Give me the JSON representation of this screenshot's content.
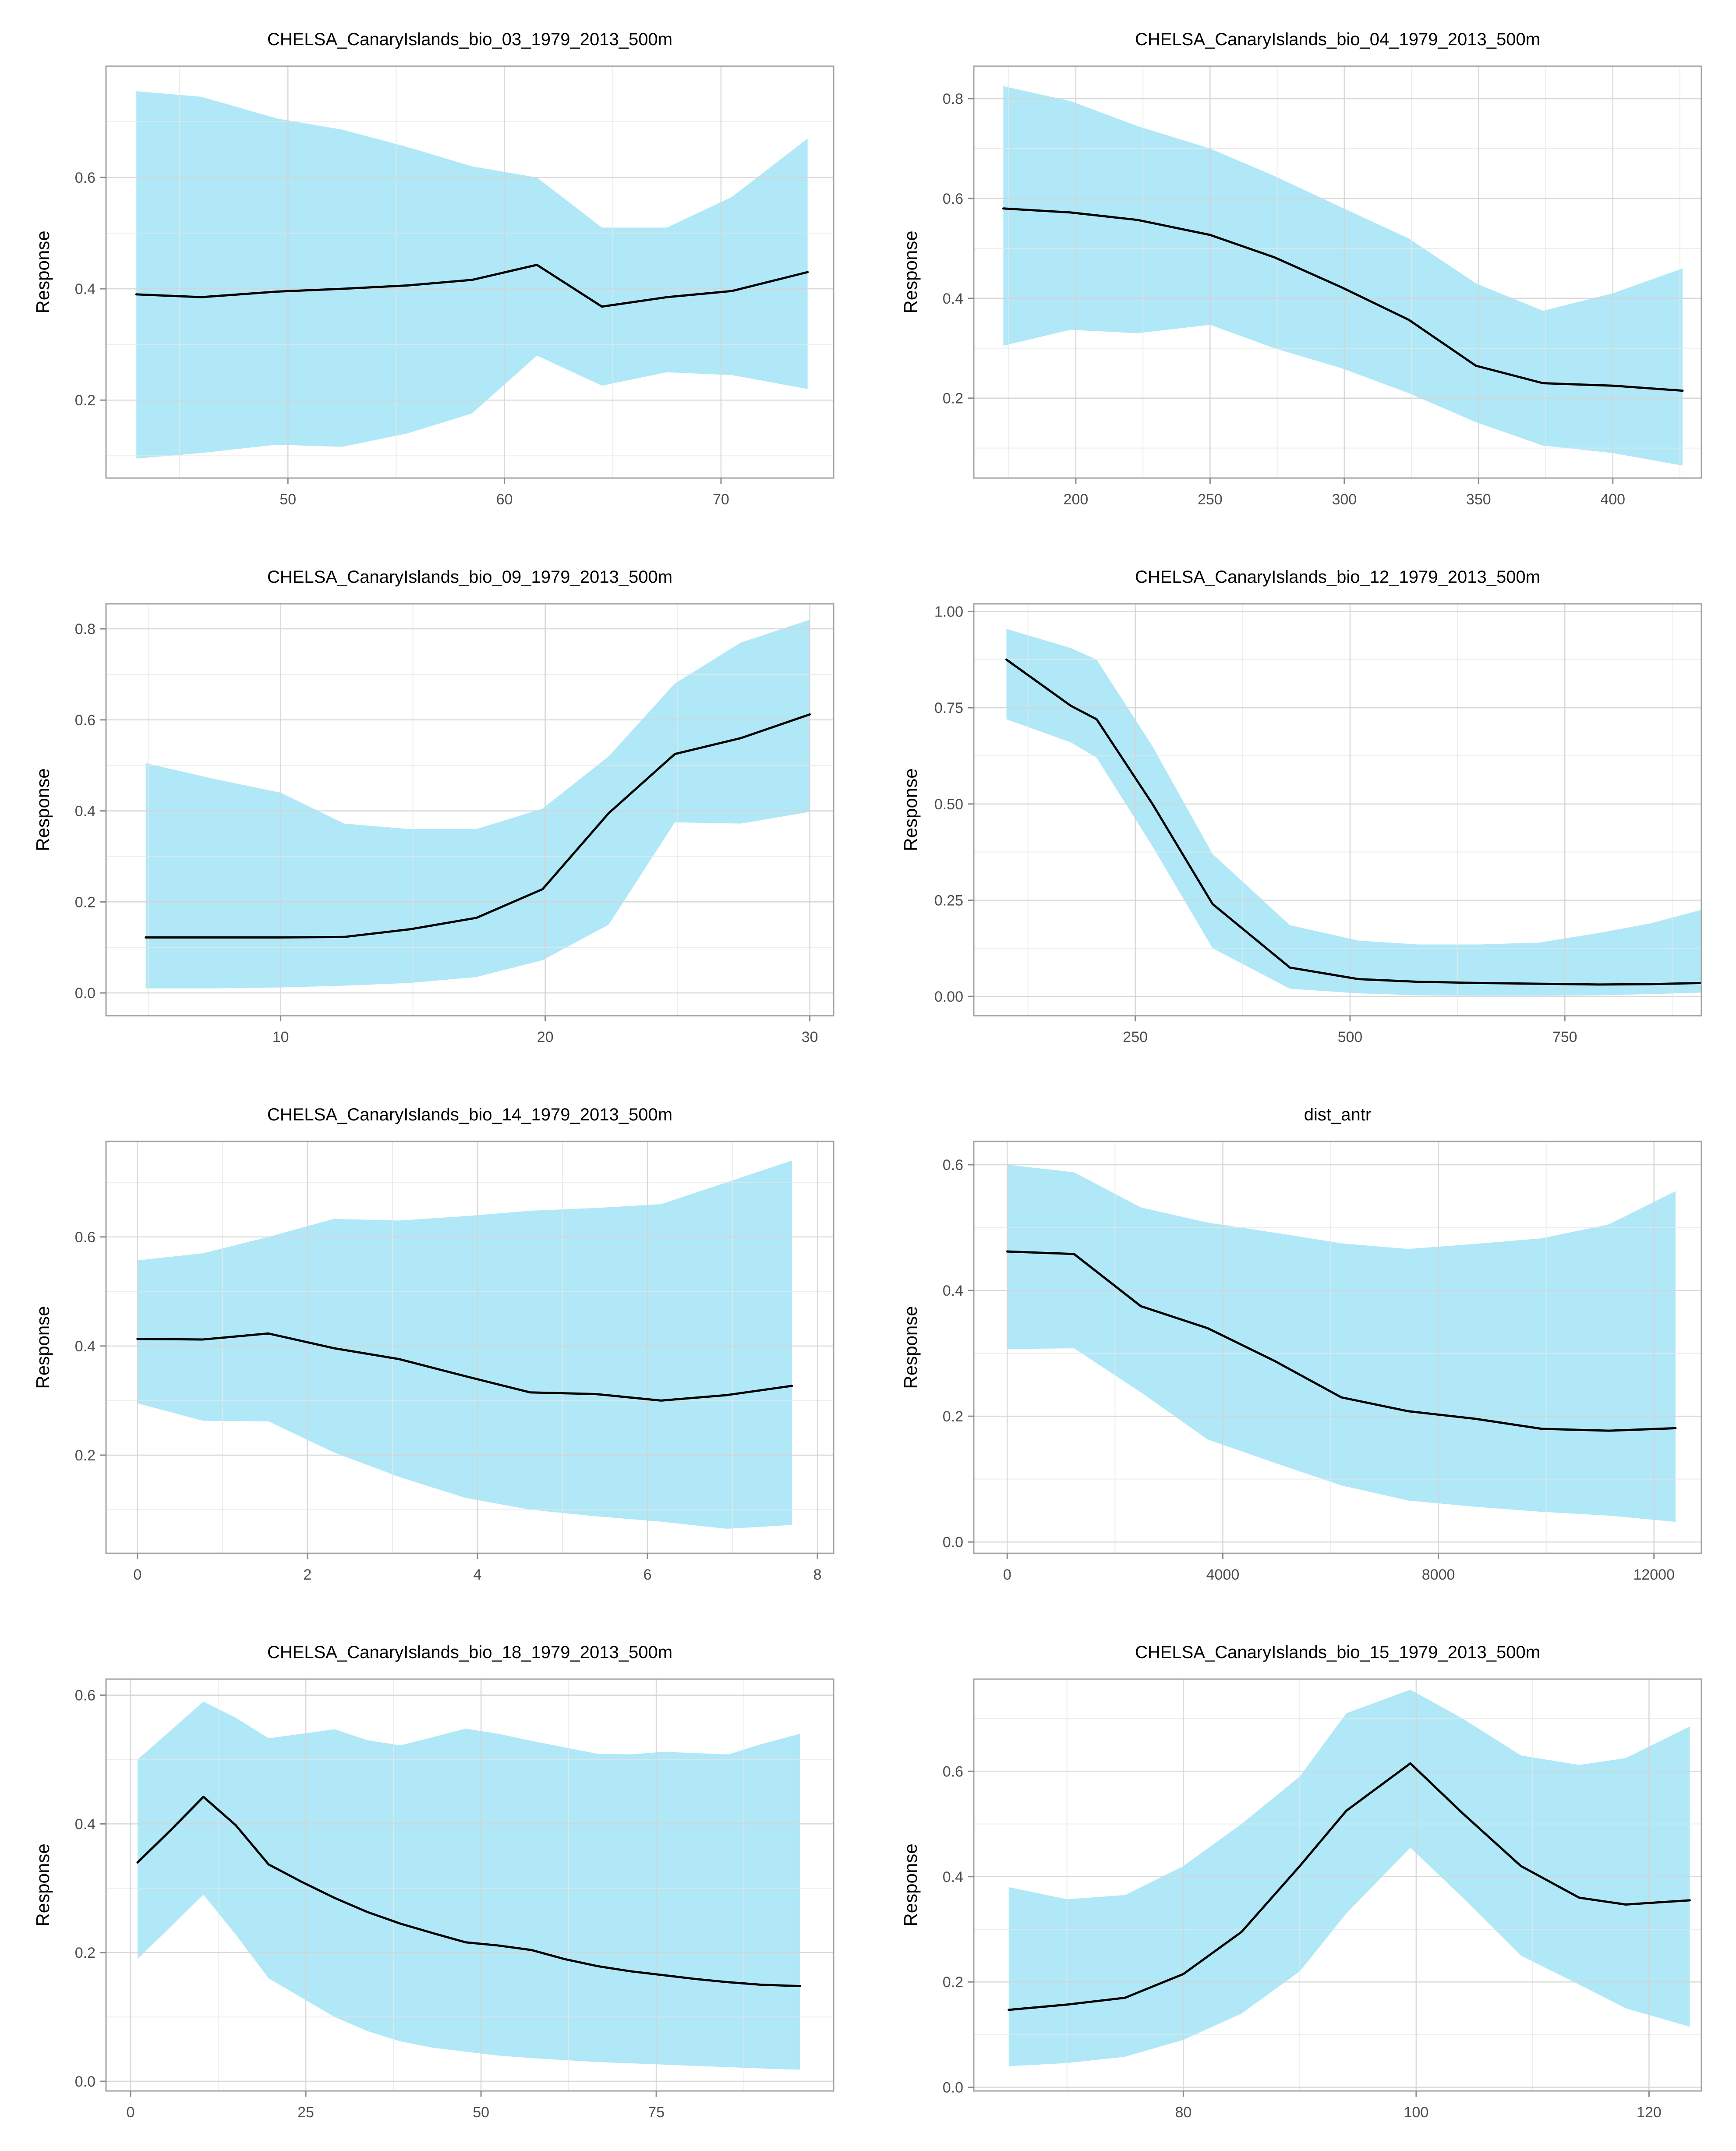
{
  "styles": {
    "band_color": "#b0e8f8",
    "line_color": "#000000",
    "grid_major": "#d4d4d4",
    "grid_minor": "#e7e7e7",
    "panel_border": "#a3a3a3",
    "tick_color": "#8c8c8c",
    "axis_text": "#4d4d4d",
    "title_color": "#000000"
  },
  "chart_data": [
    {
      "type": "area",
      "title": "CHELSA_CanaryIslands_bio_03_1979_2013_500m",
      "ylabel": "Response",
      "xlim": [
        41.6,
        75.2
      ],
      "ylim": [
        0.06,
        0.8
      ],
      "xticks": [
        50,
        60,
        70
      ],
      "xtick_labels": [
        "50",
        "60",
        "70"
      ],
      "xminor": [
        45,
        55,
        65
      ],
      "yticks": [
        0.2,
        0.4,
        0.6
      ],
      "ytick_labels": [
        "0.2",
        "0.4",
        "0.6"
      ],
      "yminor": [
        0.1,
        0.3,
        0.5,
        0.7
      ],
      "x": [
        43,
        46,
        49.5,
        52.5,
        55.5,
        58.5,
        61.5,
        64.5,
        67.5,
        70.5,
        74
      ],
      "mean": [
        0.39,
        0.385,
        0.395,
        0.4,
        0.406,
        0.416,
        0.443,
        0.368,
        0.385,
        0.396,
        0.43
      ],
      "upper": [
        0.755,
        0.745,
        0.706,
        0.686,
        0.655,
        0.62,
        0.6,
        0.51,
        0.51,
        0.565,
        0.67
      ],
      "lower": [
        0.095,
        0.105,
        0.12,
        0.116,
        0.14,
        0.176,
        0.28,
        0.226,
        0.25,
        0.245,
        0.22
      ]
    },
    {
      "type": "area",
      "title": "CHELSA_CanaryIslands_bio_04_1979_2013_500m",
      "ylabel": "Response",
      "xlim": [
        162,
        433
      ],
      "ylim": [
        0.04,
        0.865
      ],
      "xticks": [
        200,
        250,
        300,
        350,
        400
      ],
      "xtick_labels": [
        "200",
        "250",
        "300",
        "350",
        "400"
      ],
      "xminor": [
        175,
        225,
        275,
        325,
        375,
        425
      ],
      "yticks": [
        0.2,
        0.4,
        0.6,
        0.8
      ],
      "ytick_labels": [
        "0.2",
        "0.4",
        "0.6",
        "0.8"
      ],
      "yminor": [
        0.1,
        0.3,
        0.5,
        0.7
      ],
      "x": [
        173,
        198,
        223,
        250,
        274,
        299,
        324,
        349,
        374,
        400,
        426
      ],
      "mean": [
        0.58,
        0.572,
        0.557,
        0.527,
        0.482,
        0.422,
        0.357,
        0.265,
        0.23,
        0.225,
        0.215
      ],
      "upper": [
        0.825,
        0.795,
        0.745,
        0.7,
        0.645,
        0.582,
        0.52,
        0.43,
        0.375,
        0.41,
        0.46
      ],
      "lower": [
        0.305,
        0.337,
        0.33,
        0.347,
        0.3,
        0.26,
        0.21,
        0.152,
        0.105,
        0.09,
        0.065
      ]
    },
    {
      "type": "area",
      "title": "CHELSA_CanaryIslands_bio_09_1979_2013_500m",
      "ylabel": "Response",
      "xlim": [
        3.4,
        30.9
      ],
      "ylim": [
        -0.05,
        0.855
      ],
      "xticks": [
        10,
        20,
        30
      ],
      "xtick_labels": [
        "10",
        "20",
        "30"
      ],
      "xminor": [
        5,
        15,
        25
      ],
      "yticks": [
        0.0,
        0.2,
        0.4,
        0.6,
        0.8
      ],
      "ytick_labels": [
        "0.0",
        "0.2",
        "0.4",
        "0.6",
        "0.8"
      ],
      "yminor": [
        0.1,
        0.3,
        0.5,
        0.7
      ],
      "x": [
        4.9,
        7.5,
        10,
        12.4,
        14.9,
        17.4,
        19.9,
        22.4,
        24.9,
        27.4,
        30
      ],
      "mean": [
        0.122,
        0.122,
        0.122,
        0.123,
        0.14,
        0.165,
        0.228,
        0.395,
        0.525,
        0.56,
        0.612
      ],
      "upper": [
        0.505,
        0.47,
        0.44,
        0.372,
        0.36,
        0.36,
        0.405,
        0.52,
        0.68,
        0.77,
        0.82
      ],
      "lower": [
        0.01,
        0.01,
        0.012,
        0.016,
        0.022,
        0.035,
        0.072,
        0.15,
        0.375,
        0.372,
        0.398
      ]
    },
    {
      "type": "area",
      "title": "CHELSA_CanaryIslands_bio_12_1979_2013_500m",
      "ylabel": "Response",
      "xlim": [
        62,
        909
      ],
      "ylim": [
        -0.05,
        1.02
      ],
      "xticks": [
        250,
        500,
        750
      ],
      "xtick_labels": [
        "250",
        "500",
        "750"
      ],
      "xminor": [
        125,
        375,
        625,
        875
      ],
      "yticks": [
        0.0,
        0.25,
        0.5,
        0.75,
        1.0
      ],
      "ytick_labels": [
        "0.00",
        "0.25",
        "0.50",
        "0.75",
        "1.00"
      ],
      "yminor": [
        0.125,
        0.375,
        0.625,
        0.875
      ],
      "x": [
        100,
        175,
        205,
        270,
        340,
        430,
        510,
        580,
        650,
        720,
        790,
        850,
        909
      ],
      "mean": [
        0.875,
        0.755,
        0.72,
        0.5,
        0.24,
        0.075,
        0.045,
        0.038,
        0.035,
        0.033,
        0.031,
        0.032,
        0.035
      ],
      "upper": [
        0.955,
        0.905,
        0.875,
        0.65,
        0.37,
        0.185,
        0.145,
        0.135,
        0.135,
        0.14,
        0.165,
        0.19,
        0.225
      ],
      "lower": [
        0.72,
        0.66,
        0.62,
        0.39,
        0.125,
        0.02,
        0.008,
        0.003,
        0.002,
        0.002,
        0.003,
        0.006,
        0.01
      ]
    },
    {
      "type": "area",
      "title": "CHELSA_CanaryIslands_bio_14_1979_2013_500m",
      "ylabel": "Response",
      "xlim": [
        -0.37,
        8.19
      ],
      "ylim": [
        0.02,
        0.775
      ],
      "xticks": [
        0,
        2,
        4,
        6,
        8
      ],
      "xtick_labels": [
        "0",
        "2",
        "4",
        "6",
        "8"
      ],
      "xminor": [
        1,
        3,
        5,
        7
      ],
      "yticks": [
        0.2,
        0.4,
        0.6
      ],
      "ytick_labels": [
        "0.2",
        "0.4",
        "0.6"
      ],
      "yminor": [
        0.1,
        0.3,
        0.5,
        0.7
      ],
      "x": [
        0,
        0.77,
        1.54,
        2.31,
        3.08,
        3.85,
        4.62,
        5.39,
        6.16,
        6.93,
        7.7
      ],
      "mean": [
        0.413,
        0.412,
        0.423,
        0.396,
        0.376,
        0.345,
        0.315,
        0.312,
        0.3,
        0.31,
        0.327
      ],
      "upper": [
        0.557,
        0.57,
        0.6,
        0.633,
        0.63,
        0.638,
        0.648,
        0.653,
        0.66,
        0.7,
        0.74
      ],
      "lower": [
        0.295,
        0.263,
        0.262,
        0.205,
        0.16,
        0.122,
        0.1,
        0.088,
        0.078,
        0.065,
        0.072
      ]
    },
    {
      "type": "area",
      "title": "dist_antr",
      "ylabel": "Response",
      "xlim": [
        -620,
        12880
      ],
      "ylim": [
        -0.018,
        0.637
      ],
      "xticks": [
        0,
        4000,
        8000,
        12000
      ],
      "xtick_labels": [
        "0",
        "4000",
        "8000",
        "12000"
      ],
      "xminor": [
        2000,
        6000,
        10000
      ],
      "yticks": [
        0.0,
        0.2,
        0.4,
        0.6
      ],
      "ytick_labels": [
        "0.0",
        "0.2",
        "0.4",
        "0.6"
      ],
      "yminor": [
        0.1,
        0.3,
        0.5
      ],
      "x": [
        0,
        1240,
        2480,
        3720,
        4960,
        6200,
        7440,
        8680,
        9920,
        11160,
        12400
      ],
      "mean": [
        0.462,
        0.458,
        0.375,
        0.34,
        0.288,
        0.23,
        0.208,
        0.196,
        0.18,
        0.177,
        0.181
      ],
      "upper": [
        0.6,
        0.588,
        0.532,
        0.508,
        0.492,
        0.475,
        0.466,
        0.474,
        0.483,
        0.505,
        0.558
      ],
      "lower": [
        0.307,
        0.308,
        0.238,
        0.163,
        0.126,
        0.09,
        0.066,
        0.056,
        0.048,
        0.042,
        0.032
      ]
    },
    {
      "type": "area",
      "title": "CHELSA_CanaryIslands_bio_18_1979_2013_500m",
      "ylabel": "Response",
      "xlim": [
        -3.5,
        100.3
      ],
      "ylim": [
        -0.015,
        0.625
      ],
      "xticks": [
        0,
        25,
        50,
        75
      ],
      "xtick_labels": [
        "0",
        "25",
        "50",
        "75"
      ],
      "xminor": [
        12.5,
        37.5,
        62.5,
        87.5
      ],
      "yticks": [
        0.0,
        0.2,
        0.4,
        0.6
      ],
      "ytick_labels": [
        "0.0",
        "0.2",
        "0.4",
        "0.6"
      ],
      "yminor": [
        0.1,
        0.3,
        0.5
      ],
      "x": [
        1,
        5.7,
        10.4,
        15,
        19.7,
        24.4,
        29.1,
        33.8,
        38.5,
        43.2,
        47.8,
        52.5,
        57.2,
        61.9,
        66.6,
        71.3,
        76,
        80.6,
        85.3,
        90,
        95.5
      ],
      "mean": [
        0.34,
        0.39,
        0.442,
        0.398,
        0.337,
        0.31,
        0.285,
        0.263,
        0.245,
        0.23,
        0.216,
        0.211,
        0.204,
        0.19,
        0.179,
        0.171,
        0.165,
        0.159,
        0.154,
        0.15,
        0.148
      ],
      "upper": [
        0.5,
        0.545,
        0.59,
        0.565,
        0.533,
        0.54,
        0.547,
        0.53,
        0.522,
        0.535,
        0.548,
        0.54,
        0.529,
        0.519,
        0.509,
        0.508,
        0.512,
        0.51,
        0.508,
        0.524,
        0.54
      ],
      "lower": [
        0.19,
        0.24,
        0.29,
        0.228,
        0.16,
        0.13,
        0.1,
        0.078,
        0.062,
        0.052,
        0.046,
        0.04,
        0.036,
        0.033,
        0.03,
        0.028,
        0.026,
        0.024,
        0.022,
        0.02,
        0.018
      ]
    },
    {
      "type": "area",
      "title": "CHELSA_CanaryIslands_bio_15_1979_2013_500m",
      "ylabel": "Response",
      "xlim": [
        62,
        124.5
      ],
      "ylim": [
        -0.007,
        0.775
      ],
      "xticks": [
        80,
        100,
        120
      ],
      "xtick_labels": [
        "80",
        "100",
        "120"
      ],
      "xminor": [
        70,
        90,
        110
      ],
      "yticks": [
        0.0,
        0.2,
        0.4,
        0.6
      ],
      "ytick_labels": [
        "0.0",
        "0.2",
        "0.4",
        "0.6"
      ],
      "yminor": [
        0.1,
        0.3,
        0.5,
        0.7
      ],
      "x": [
        65,
        70,
        75,
        80,
        85,
        90,
        94,
        99.5,
        104,
        109,
        114,
        118,
        123.5
      ],
      "mean": [
        0.147,
        0.157,
        0.17,
        0.215,
        0.295,
        0.42,
        0.525,
        0.615,
        0.52,
        0.42,
        0.36,
        0.347,
        0.355
      ],
      "upper": [
        0.38,
        0.357,
        0.365,
        0.42,
        0.5,
        0.59,
        0.71,
        0.755,
        0.7,
        0.63,
        0.612,
        0.625,
        0.685
      ],
      "lower": [
        0.04,
        0.046,
        0.058,
        0.09,
        0.14,
        0.22,
        0.33,
        0.455,
        0.36,
        0.25,
        0.195,
        0.15,
        0.115
      ]
    }
  ]
}
